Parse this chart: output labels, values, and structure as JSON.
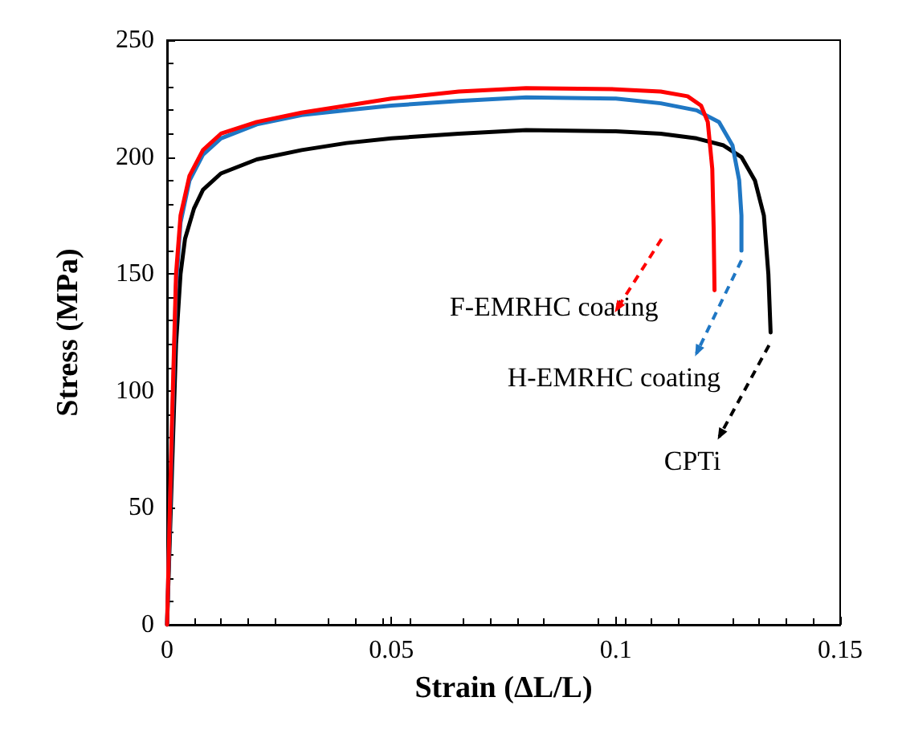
{
  "chart_data": {
    "type": "line",
    "xlabel": "Strain (ΔL/L)",
    "ylabel": "Stress (MPa)",
    "xlim": [
      0,
      0.15
    ],
    "xticks": [
      0,
      0.05,
      0.1,
      0.15
    ],
    "ylim": [
      0,
      250
    ],
    "yticks": [
      0,
      50,
      100,
      150,
      200,
      250
    ],
    "grid": false,
    "legend": "right",
    "marker": "none",
    "line_style": "solid",
    "series": [
      {
        "name": "CPTi",
        "color": "#000000",
        "x": [
          0,
          0.001,
          0.002,
          0.003,
          0.004,
          0.006,
          0.008,
          0.012,
          0.02,
          0.03,
          0.04,
          0.05,
          0.065,
          0.08,
          0.1,
          0.11,
          0.118,
          0.124,
          0.128,
          0.131,
          0.133,
          0.134,
          0.1345
        ],
        "values": [
          0,
          60,
          120,
          150,
          165,
          178,
          186,
          193,
          199,
          203,
          206,
          208,
          210,
          211.5,
          211,
          210,
          208,
          205,
          200,
          190,
          175,
          150,
          125
        ]
      },
      {
        "name": "H-EMRHC coating",
        "color": "#1f77c4",
        "x": [
          0,
          0.001,
          0.002,
          0.003,
          0.005,
          0.008,
          0.012,
          0.02,
          0.03,
          0.04,
          0.05,
          0.065,
          0.08,
          0.1,
          0.11,
          0.118,
          0.123,
          0.126,
          0.1275,
          0.128,
          0.128
        ],
        "values": [
          0,
          75,
          145,
          172,
          190,
          201,
          208,
          214,
          218,
          220,
          222,
          224,
          225.5,
          225,
          223,
          220,
          215,
          205,
          190,
          175,
          160
        ]
      },
      {
        "name": "F-EMRHC coating",
        "color": "#ff0000",
        "x": [
          0,
          0.001,
          0.002,
          0.003,
          0.005,
          0.008,
          0.012,
          0.02,
          0.03,
          0.04,
          0.05,
          0.065,
          0.08,
          0.1,
          0.11,
          0.116,
          0.119,
          0.1205,
          0.1215,
          0.1218,
          0.122
        ],
        "values": [
          0,
          80,
          150,
          175,
          192,
          203,
          210,
          215,
          219,
          222,
          225,
          228,
          229.5,
          229,
          228,
          226,
          222,
          215,
          195,
          170,
          143
        ]
      }
    ]
  }
}
